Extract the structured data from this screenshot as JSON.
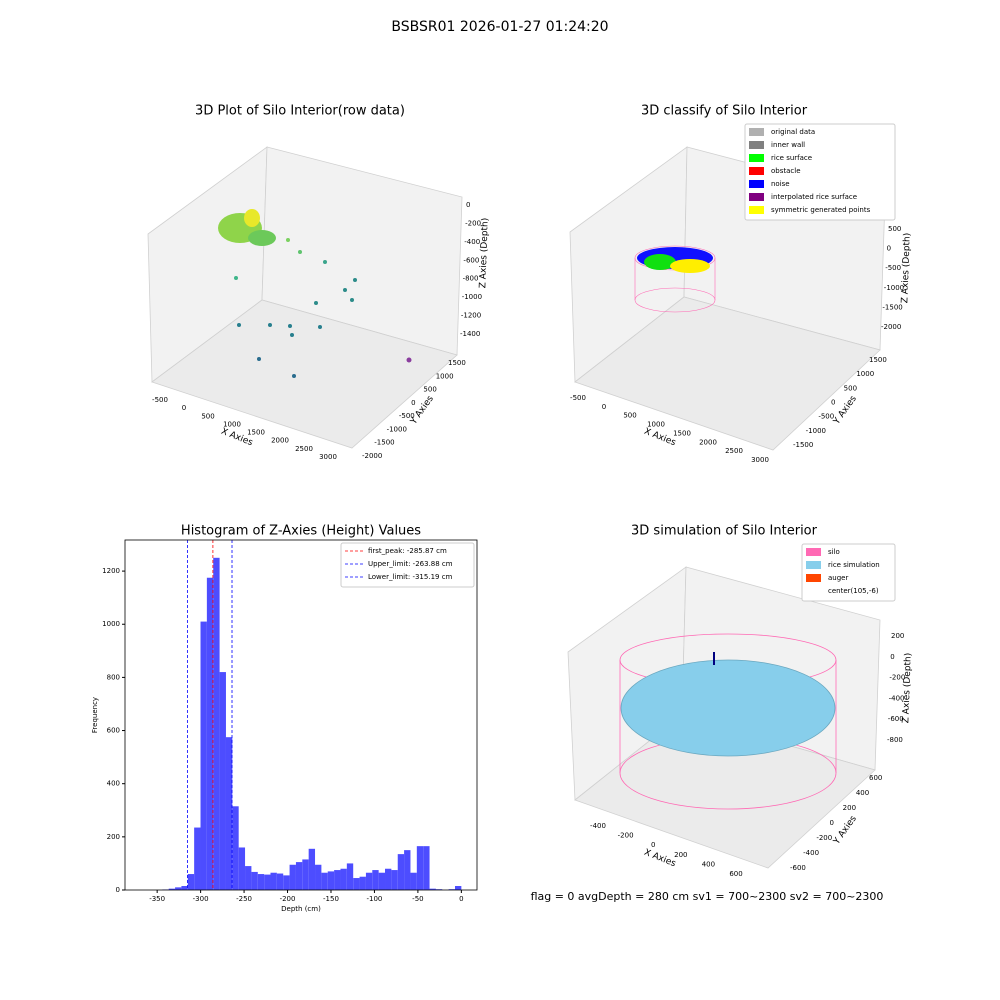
{
  "title": "BSBSR01 2026-01-27 01:24:20",
  "chart_data": [
    {
      "type": "scatter3d",
      "title": "3D Plot of Silo Interior(row data)",
      "xlabel": "X Axies",
      "ylabel": "Y Axies",
      "zlabel": "Z Axies (Depth)",
      "xticks": [
        -500,
        0,
        500,
        1000,
        1500,
        2000,
        2500,
        3000
      ],
      "yticks": [
        -2000,
        -1500,
        -1000,
        -500,
        0,
        500,
        1000,
        1500
      ],
      "zticks": [
        0,
        -200,
        -400,
        -600,
        -800,
        -1000,
        -1200,
        -1400
      ]
    },
    {
      "type": "scatter3d",
      "title": "3D classify of Silo Interior",
      "xlabel": "X Axies",
      "ylabel": "Y Axies",
      "zlabel": "Z Axies (Depth)",
      "xticks": [
        -500,
        0,
        500,
        1000,
        1500,
        2000,
        2500,
        3000
      ],
      "yticks": [
        -1500,
        -1000,
        -500,
        0,
        500,
        1000,
        1500
      ],
      "zticks": [
        500,
        0,
        -500,
        -1000,
        -1500,
        -2000
      ],
      "legend": [
        {
          "name": "original data",
          "color": "#b0b0b0"
        },
        {
          "name": "inner wall",
          "color": "#808080"
        },
        {
          "name": "rice surface",
          "color": "#00ff00"
        },
        {
          "name": "obstacle",
          "color": "#ff0000"
        },
        {
          "name": "noise",
          "color": "#0000ff"
        },
        {
          "name": "interpolated rice surface",
          "color": "#800080"
        },
        {
          "name": "symmetric generated points",
          "color": "#ffff00"
        }
      ]
    },
    {
      "type": "histogram",
      "title": "Histogram of Z-Axies (Height) Values",
      "xlabel": "Depth (cm)",
      "ylabel": "Frequency",
      "color": "#4d4dff",
      "bins": [
        -366,
        -358.68,
        -351.36,
        -344.04,
        -336.72,
        -329.4,
        -322.08,
        -314.76,
        -307.44,
        -300.12,
        -292.8,
        -285.48,
        -278.16,
        -270.84,
        -263.52,
        -256.2,
        -248.88,
        -241.56,
        -234.24,
        -226.92,
        -219.6,
        -212.28,
        -204.96,
        -197.64,
        -190.32,
        -183,
        -175.68,
        -168.36,
        -161.04,
        -153.72,
        -146.4,
        -139.08,
        -131.76,
        -124.44,
        -117.12,
        -109.8,
        -102.48,
        -95.16,
        -87.84,
        -80.52,
        -73.2,
        -65.88,
        -58.56,
        -51.24,
        -43.92,
        -36.6,
        -29.28,
        -21.96,
        -14.64,
        -7.32,
        0
      ],
      "values": [
        0,
        0,
        0,
        2,
        5,
        10,
        15,
        60,
        235,
        1010,
        1175,
        1250,
        820,
        575,
        315,
        160,
        90,
        68,
        60,
        58,
        65,
        62,
        55,
        95,
        105,
        115,
        155,
        95,
        65,
        70,
        75,
        80,
        100,
        45,
        50,
        65,
        75,
        65,
        80,
        75,
        135,
        150,
        65,
        165,
        165,
        5,
        3,
        0,
        3,
        15
      ],
      "xlim": [
        -387,
        18
      ],
      "ylim": [
        0,
        1317
      ],
      "xticks": [
        -350,
        -300,
        -250,
        -200,
        -150,
        -100,
        -50,
        0
      ],
      "yticks": [
        0,
        200,
        400,
        600,
        800,
        1000,
        1200
      ],
      "lines": [
        {
          "name": "first_peak: -285.87 cm",
          "value": -285.87,
          "color": "#ff0000"
        },
        {
          "name": "Upper_limit: -263.88 cm",
          "value": -263.88,
          "color": "#0000ff"
        },
        {
          "name": "Lower_limit: -315.19 cm",
          "value": -315.19,
          "color": "#0000ff"
        }
      ]
    },
    {
      "type": "surface3d",
      "title": "3D simulation of Silo Interior",
      "xlabel": "X Axies",
      "ylabel": "Y Axies",
      "zlabel": "Z Axies (Depth)",
      "xticks": [
        -400,
        -200,
        0,
        200,
        400,
        600
      ],
      "yticks": [
        -600,
        -400,
        -200,
        0,
        200,
        400,
        600
      ],
      "zticks": [
        200,
        0,
        -200,
        -400,
        -600,
        -800
      ],
      "legend": [
        {
          "name": "silo",
          "color": "#ff69b4"
        },
        {
          "name": "rice simulation",
          "color": "#87ceeb"
        },
        {
          "name": "auger",
          "color": "#ff4500"
        },
        {
          "name": "center(105,-6)",
          "color": "#ffffff"
        }
      ],
      "annotation": "flag = 0     avgDepth = 280 cm  sv1 = 700~2300  sv2 = 700~2300"
    }
  ]
}
